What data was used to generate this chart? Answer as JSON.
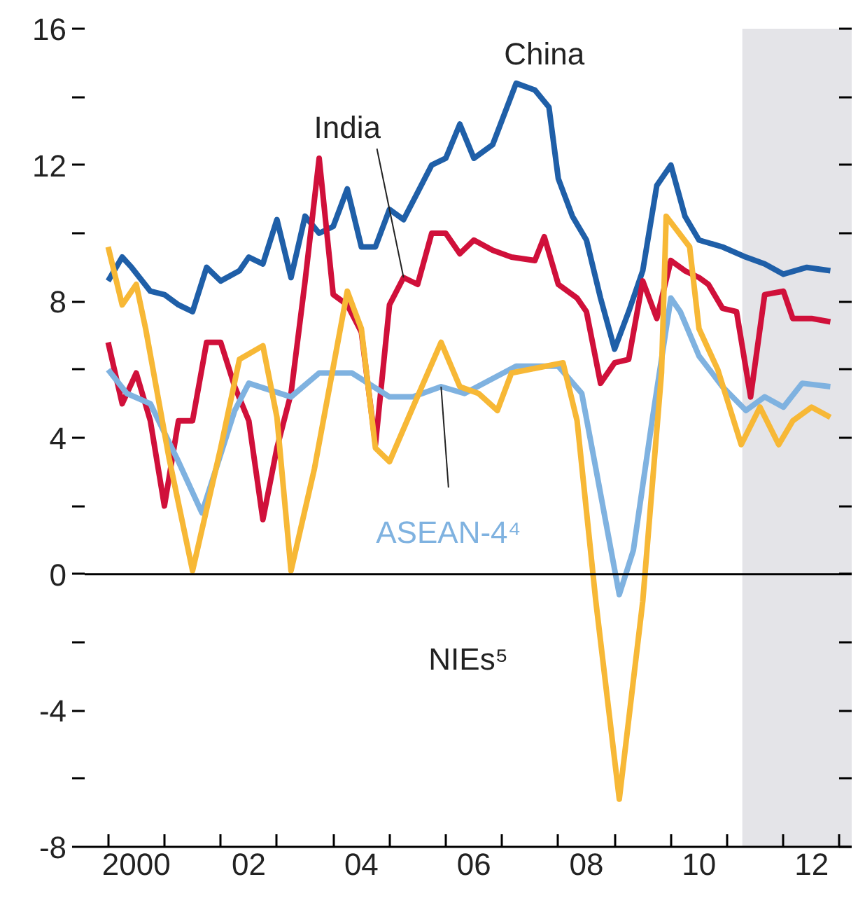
{
  "chart_data": {
    "type": "line",
    "xlim": [
      "1999-08",
      "2013-03-18"
    ],
    "ylim": [
      -8,
      16
    ],
    "xticks": [
      {
        "value": "2000",
        "label": null
      },
      {
        "value": "2001",
        "label": null
      },
      {
        "value": "2002",
        "label": null
      },
      {
        "value": "2003",
        "label": null
      },
      {
        "value": "2004",
        "label": null
      },
      {
        "value": "2005",
        "label": null
      },
      {
        "value": "2006",
        "label": null
      },
      {
        "value": "2007",
        "label": null
      },
      {
        "value": "2008",
        "label": null
      },
      {
        "value": "2009",
        "label": null
      },
      {
        "value": "2010",
        "label": null
      },
      {
        "value": "2011",
        "label": null
      },
      {
        "value": "2012",
        "label": null
      },
      {
        "value": "2013",
        "label": null
      },
      {
        "value": "2000-07",
        "label": "2000"
      },
      {
        "value": "2002-07",
        "label": "02"
      },
      {
        "value": "2004-07",
        "label": "04"
      },
      {
        "value": "2006-07",
        "label": "06"
      },
      {
        "value": "2008-07",
        "label": "08"
      },
      {
        "value": "2010-07",
        "label": "10"
      },
      {
        "value": "2012-07",
        "label": "12"
      }
    ],
    "yticks": [
      -8,
      -4,
      0,
      4,
      8,
      12,
      16,
      {
        "value": -6,
        "label": null
      },
      {
        "value": -2,
        "label": null
      },
      {
        "value": 2,
        "label": null
      },
      {
        "value": 6,
        "label": null
      },
      {
        "value": 10,
        "label": null
      },
      {
        "value": 14,
        "label": null
      }
    ],
    "grid": false,
    "ref_lines": [
      {
        "axis": "y",
        "value": 0,
        "label": null,
        "color": "#000000"
      }
    ],
    "bands": [
      {
        "axis": "x",
        "from": "2011-04-08",
        "to": "2013-03-18",
        "label": null,
        "color": "#e4e4e8"
      }
    ],
    "series": [
      {
        "name": "China",
        "color": "#1f5fa8",
        "x": [
          "2000-01",
          "2000-04",
          "2000-06",
          "2000-10",
          "2001-01",
          "2001-04",
          "2001-07",
          "2001-10",
          "2002-01",
          "2002-05",
          "2002-07",
          "2002-10",
          "2003-01",
          "2003-04",
          "2003-07",
          "2003-10",
          "2004-01",
          "2004-04",
          "2004-07",
          "2004-10",
          "2005-01",
          "2005-04",
          "2005-07",
          "2005-10",
          "2006-01",
          "2006-04",
          "2006-07",
          "2006-11",
          "2007-04",
          "2007-08",
          "2007-11",
          "2008-01",
          "2008-04",
          "2008-07",
          "2008-10",
          "2009-01",
          "2009-04",
          "2009-07",
          "2009-10",
          "2010-01",
          "2010-04",
          "2010-07",
          "2010-12",
          "2011-05",
          "2011-09",
          "2012-01",
          "2012-06",
          "2012-11"
        ],
        "values": [
          8.6,
          9.3,
          9.0,
          8.3,
          8.2,
          7.9,
          7.7,
          9.0,
          8.6,
          8.9,
          9.3,
          9.1,
          10.4,
          8.7,
          10.5,
          10.0,
          10.2,
          11.3,
          9.6,
          9.6,
          10.7,
          10.4,
          11.2,
          12.0,
          12.2,
          13.2,
          12.2,
          12.6,
          14.4,
          14.2,
          13.7,
          11.6,
          10.5,
          9.8,
          8.1,
          6.6,
          7.7,
          8.9,
          11.4,
          12.0,
          10.5,
          9.8,
          9.6,
          9.3,
          9.1,
          8.8,
          9.0,
          8.9
        ]
      },
      {
        "name": "India",
        "color": "#d0103a",
        "x": [
          "2000-01",
          "2000-04",
          "2000-07",
          "2000-10",
          "2001-01",
          "2001-04",
          "2001-07",
          "2001-10",
          "2002-01",
          "2002-04",
          "2002-07",
          "2002-10",
          "2003-01",
          "2003-04",
          "2003-07",
          "2003-10",
          "2004-01",
          "2004-04",
          "2004-07",
          "2004-10",
          "2005-01",
          "2005-04",
          "2005-07",
          "2005-10",
          "2006-01",
          "2006-04",
          "2006-07",
          "2006-11",
          "2007-03",
          "2007-08",
          "2007-10",
          "2008-01",
          "2008-05",
          "2008-07",
          "2008-10",
          "2009-01",
          "2009-04",
          "2009-07",
          "2009-10",
          "2010-01",
          "2010-04",
          "2010-07",
          "2010-09",
          "2010-12",
          "2011-03",
          "2011-06",
          "2011-09",
          "2012-01",
          "2012-03",
          "2012-07",
          "2012-11"
        ],
        "values": [
          6.8,
          5.0,
          5.9,
          4.5,
          2.0,
          4.5,
          4.5,
          6.8,
          6.8,
          5.5,
          4.5,
          1.6,
          3.7,
          5.3,
          8.6,
          12.2,
          8.2,
          7.9,
          7.1,
          3.8,
          7.9,
          8.7,
          8.5,
          10.0,
          10.0,
          9.4,
          9.8,
          9.5,
          9.3,
          9.2,
          9.9,
          8.5,
          8.1,
          7.7,
          5.6,
          6.2,
          6.3,
          8.6,
          7.5,
          9.2,
          8.9,
          8.7,
          8.5,
          7.8,
          7.7,
          5.2,
          8.2,
          8.3,
          7.5,
          7.5,
          7.4
        ]
      },
      {
        "name": "ASEAN-4⁴",
        "color": "#7fb2e0",
        "x": [
          "2000-01",
          "2000-05",
          "2000-10",
          "2001-04",
          "2001-09",
          "2002-04",
          "2002-07",
          "2003-04",
          "2003-10",
          "2004-05",
          "2005-01",
          "2005-06",
          "2005-12",
          "2006-05",
          "2007-04",
          "2008-01",
          "2008-06",
          "2008-09",
          "2009-02",
          "2009-05",
          "2009-09",
          "2010-01",
          "2010-03",
          "2010-07",
          "2010-12",
          "2011-05",
          "2011-09",
          "2012-01",
          "2012-05",
          "2012-11"
        ],
        "values": [
          6.0,
          5.3,
          5.0,
          3.3,
          1.8,
          4.8,
          5.6,
          5.2,
          5.9,
          5.9,
          5.2,
          5.2,
          5.5,
          5.3,
          6.1,
          6.1,
          5.3,
          3.1,
          -0.6,
          0.7,
          4.5,
          8.1,
          7.7,
          6.4,
          5.5,
          4.8,
          5.2,
          4.9,
          5.6,
          5.5
        ]
      },
      {
        "name": "NIEs⁵",
        "color": "#f7b836",
        "x": [
          "2000-01",
          "2000-04",
          "2000-07",
          "2000-09",
          "2001-02",
          "2001-07",
          "2002-01",
          "2002-05",
          "2002-10",
          "2003-01",
          "2003-04",
          "2003-09",
          "2004-04",
          "2004-07",
          "2004-10",
          "2005-01",
          "2005-06",
          "2005-12",
          "2006-04",
          "2006-08",
          "2006-12",
          "2007-03",
          "2008-02",
          "2008-05",
          "2008-09",
          "2009-02",
          "2009-07",
          "2009-11",
          "2009-12",
          "2010-05",
          "2010-07",
          "2010-11",
          "2011-04",
          "2011-08",
          "2011-12",
          "2012-03",
          "2012-07",
          "2012-11"
        ],
        "values": [
          9.6,
          7.9,
          8.5,
          7.2,
          3.4,
          0.1,
          3.7,
          6.3,
          6.7,
          4.6,
          0.1,
          3.1,
          8.3,
          7.2,
          3.7,
          3.3,
          4.9,
          6.8,
          5.5,
          5.3,
          4.8,
          5.9,
          6.2,
          4.5,
          -0.8,
          -6.6,
          -0.8,
          5.9,
          10.5,
          9.6,
          7.2,
          6.0,
          3.8,
          4.9,
          3.8,
          4.5,
          4.9,
          4.6
        ]
      }
    ]
  }
}
